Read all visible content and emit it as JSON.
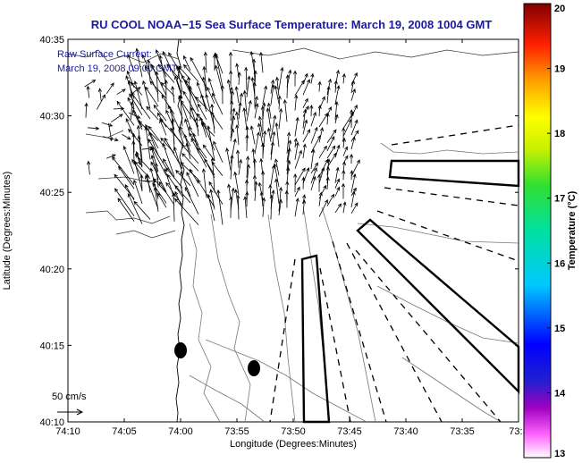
{
  "title": "RU COOL  NOAA−15  Sea Surface Temperature:  March 19, 2008 1004 GMT",
  "annotation": {
    "line1": "Raw Surface Current:",
    "line2": "March 19, 2008 09:00 GMT"
  },
  "scale_label": "50 cm/s",
  "colorbar": {
    "label": "Temperature (°C)",
    "ticks": [
      "20",
      "19",
      "18",
      "17",
      "16",
      "15",
      "14",
      "13"
    ],
    "min": 13,
    "max": 20
  },
  "chart_data": {
    "type": "map",
    "title": "RU COOL  NOAA−15  Sea Surface Temperature:  March 19, 2008 1004 GMT",
    "xlabel": "Longitude (Degrees:Minutes)",
    "ylabel": "Latitude (Degrees:Minutes)",
    "x_ticks": [
      "74:10",
      "74:05",
      "74:00",
      "73:55",
      "73:50",
      "73:45",
      "73:40",
      "73:35",
      "73:3"
    ],
    "y_ticks": [
      "40:35",
      "40:30",
      "40:25",
      "40:20",
      "40:15",
      "40:10"
    ],
    "x_range_minutes": [
      -4450,
      -4410
    ],
    "y_range_minutes": [
      2410,
      2435
    ],
    "legend": "bottom-left current scale arrow"
  }
}
